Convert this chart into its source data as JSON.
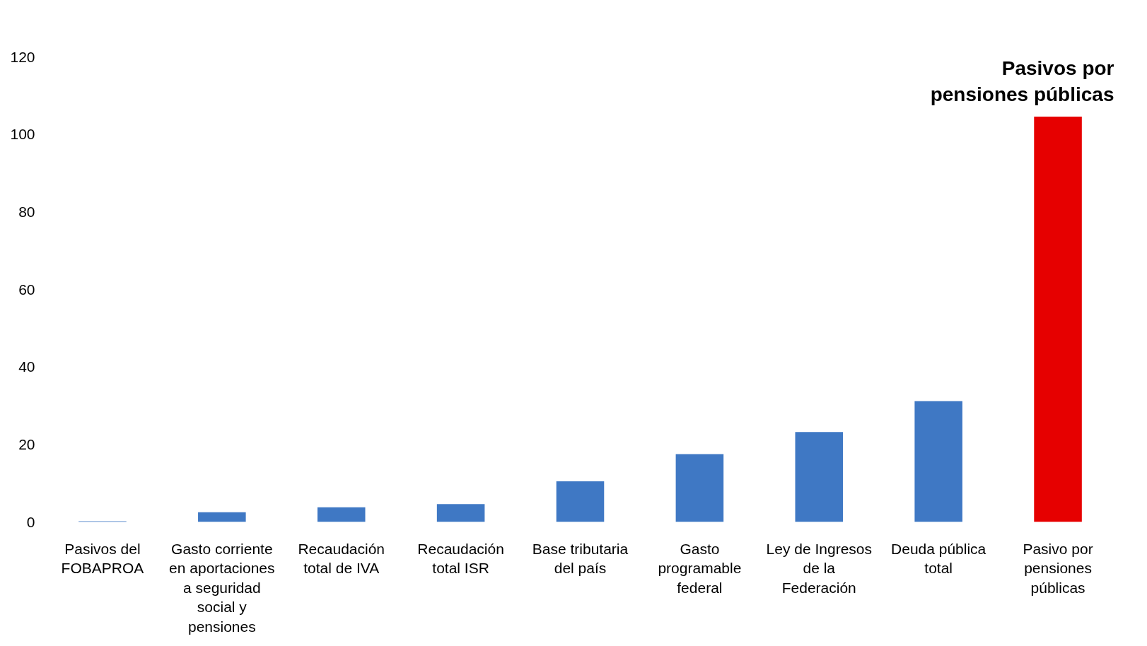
{
  "chart_data": {
    "type": "bar",
    "categories": [
      "Pasivos del FOBAPROA",
      "Gasto corriente en aportaciones a seguridad social y pensiones",
      "Recaudación total de IVA",
      "Recaudación total ISR",
      "Base tributaria del país",
      "Gasto programable federal",
      "Ley de Ingresos de la Federación",
      "Deuda pública total",
      "Pasivo por pensiones públicas"
    ],
    "values": [
      0.2,
      2.5,
      3.8,
      4.6,
      10.5,
      17.5,
      23.2,
      31.2,
      104.6
    ],
    "colors": [
      "#3f78c4",
      "#3f78c4",
      "#3f78c4",
      "#3f78c4",
      "#3f78c4",
      "#3f78c4",
      "#3f78c4",
      "#3f78c4",
      "#e60000"
    ],
    "ylim": [
      0,
      120
    ],
    "yticks": [
      0,
      20,
      40,
      60,
      80,
      100,
      120
    ],
    "annotations": [
      "Pasivos por pensiones públicas"
    ],
    "grid": false
  }
}
